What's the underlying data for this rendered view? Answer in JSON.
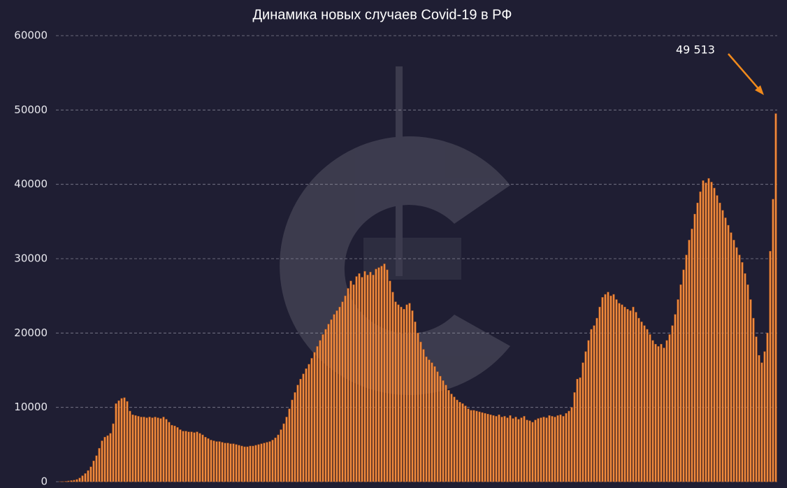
{
  "chart_data": {
    "type": "bar",
    "title": "Динамика новых случаев Covid-19 в РФ",
    "color": "#f08a3c",
    "annotation": "49 513",
    "ylim": [
      0,
      60000
    ],
    "yticks": [
      0,
      10000,
      20000,
      30000,
      40000,
      50000,
      60000
    ],
    "grid": true,
    "values": [
      0,
      10,
      20,
      50,
      100,
      150,
      200,
      300,
      500,
      800,
      1100,
      1500,
      2000,
      2800,
      3500,
      4500,
      5500,
      6000,
      6200,
      6500,
      7800,
      10500,
      10900,
      11200,
      11300,
      10800,
      9500,
      9000,
      8900,
      8800,
      8700,
      8700,
      8600,
      8700,
      8600,
      8700,
      8600,
      8500,
      8700,
      8400,
      8000,
      7600,
      7500,
      7300,
      7000,
      6800,
      6800,
      6700,
      6700,
      6600,
      6700,
      6500,
      6300,
      6000,
      5800,
      5600,
      5500,
      5400,
      5400,
      5300,
      5200,
      5200,
      5100,
      5100,
      5000,
      4900,
      4800,
      4700,
      4700,
      4800,
      4800,
      4900,
      5000,
      5100,
      5200,
      5300,
      5400,
      5600,
      5900,
      6300,
      7000,
      7800,
      8700,
      9800,
      11000,
      12000,
      13000,
      13800,
      14500,
      15200,
      15800,
      16600,
      17400,
      18200,
      19000,
      19800,
      20500,
      21200,
      21800,
      22500,
      23000,
      23500,
      24200,
      25000,
      26000,
      27000,
      26500,
      27600,
      28000,
      27500,
      28300,
      27800,
      28200,
      27800,
      28600,
      28800,
      29000,
      29300,
      28500,
      27000,
      25500,
      24200,
      23800,
      23500,
      23200,
      23800,
      24000,
      23000,
      21500,
      20000,
      18800,
      17800,
      16800,
      16400,
      16000,
      15500,
      14800,
      14200,
      13600,
      13000,
      12300,
      11800,
      11400,
      11000,
      10700,
      10500,
      10200,
      9800,
      9600,
      9600,
      9500,
      9400,
      9300,
      9200,
      9100,
      9000,
      8900,
      8800,
      9000,
      8700,
      8800,
      8600,
      8900,
      8500,
      8700,
      8400,
      8600,
      8800,
      8300,
      8200,
      8000,
      8300,
      8500,
      8600,
      8700,
      8600,
      8900,
      8800,
      8700,
      8900,
      9000,
      8800,
      9200,
      9500,
      10000,
      12000,
      13800,
      14000,
      16000,
      17500,
      19000,
      20500,
      21000,
      22000,
      23500,
      24800,
      25200,
      25500,
      25000,
      25200,
      24500,
      24000,
      23800,
      23500,
      23200,
      23000,
      23500,
      22800,
      22000,
      21500,
      21000,
      20500,
      19800,
      19000,
      18500,
      18200,
      18500,
      18000,
      19000,
      19800,
      21000,
      22500,
      24500,
      26500,
      28500,
      30500,
      32500,
      34000,
      36000,
      37500,
      39000,
      40500,
      40200,
      40800,
      40300,
      39500,
      38500,
      37500,
      36500,
      35500,
      34500,
      33500,
      32500,
      31500,
      30500,
      29500,
      28000,
      26500,
      24500,
      22000,
      19500,
      17000,
      16000,
      17500,
      20000,
      31000,
      38000,
      49513
    ]
  }
}
